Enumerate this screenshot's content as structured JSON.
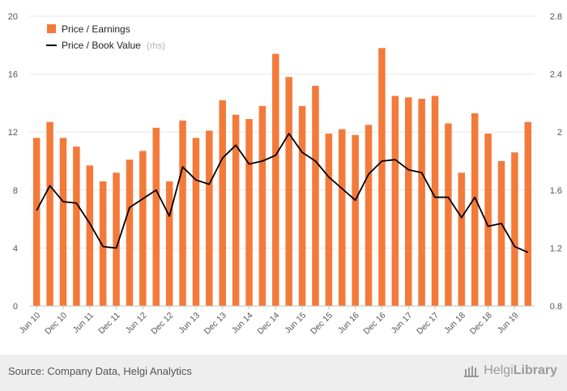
{
  "chart_data": {
    "type": "bar",
    "categories": [
      "Jun 10",
      "Sep 10",
      "Dec 10",
      "Mar 11",
      "Jun 11",
      "Sep 11",
      "Dec 11",
      "Mar 12",
      "Jun 12",
      "Sep 12",
      "Dec 12",
      "Mar 13",
      "Jun 13",
      "Sep 13",
      "Dec 13",
      "Mar 14",
      "Jun 14",
      "Sep 14",
      "Dec 14",
      "Mar 15",
      "Jun 15",
      "Sep 15",
      "Dec 15",
      "Mar 16",
      "Jun 16",
      "Sep 16",
      "Dec 16",
      "Mar 17",
      "Jun 17",
      "Sep 17",
      "Dec 17",
      "Mar 18",
      "Jun 18",
      "Sep 18",
      "Dec 18",
      "Mar 19",
      "Jun 19",
      "Sep 19"
    ],
    "x_tick_labels": [
      "Jun 10",
      "Dec 10",
      "Jun 11",
      "Dec 11",
      "Jun 12",
      "Dec 12",
      "Jun 13",
      "Dec 13",
      "Jun 14",
      "Dec 14",
      "Jun 15",
      "Dec 15",
      "Jun 16",
      "Dec 16",
      "Jun 17",
      "Dec 17",
      "Jun 18",
      "Dec 18",
      "Jun 19"
    ],
    "series": [
      {
        "name": "Price / Earnings",
        "type": "bar",
        "axis": "left",
        "color": "#f47a3a",
        "values": [
          11.6,
          12.7,
          11.6,
          11.0,
          9.7,
          8.6,
          9.2,
          10.1,
          10.7,
          12.3,
          8.6,
          12.8,
          11.6,
          12.1,
          14.2,
          13.2,
          12.9,
          13.8,
          17.4,
          15.8,
          13.8,
          15.2,
          11.9,
          12.2,
          11.8,
          12.5,
          17.8,
          14.5,
          14.4,
          14.3,
          14.5,
          12.6,
          9.2,
          13.3,
          11.9,
          10.0,
          10.6,
          12.7
        ]
      },
      {
        "name": "Price / Book Value",
        "name_suffix": "(rhs)",
        "type": "line",
        "axis": "right",
        "color": "#000000",
        "values": [
          1.46,
          1.63,
          1.52,
          1.51,
          1.37,
          1.21,
          1.2,
          1.48,
          1.54,
          1.6,
          1.42,
          1.76,
          1.67,
          1.64,
          1.82,
          1.91,
          1.78,
          1.8,
          1.84,
          1.99,
          1.86,
          1.8,
          1.69,
          1.61,
          1.53,
          1.71,
          1.8,
          1.81,
          1.74,
          1.72,
          1.55,
          1.55,
          1.41,
          1.55,
          1.35,
          1.37,
          1.21,
          1.17
        ]
      }
    ],
    "y_left": {
      "min": 0,
      "max": 20,
      "ticks": [
        "0",
        "4",
        "8",
        "12",
        "16",
        "20"
      ]
    },
    "y_right": {
      "min": 0.8,
      "max": 2.8,
      "ticks": [
        "0.8",
        "1.2",
        "1.6",
        "2",
        "2.4",
        "2.8"
      ]
    },
    "grid": true,
    "legend": "top-left"
  },
  "footer": {
    "source": "Source: Company Data, Helgi Analytics",
    "brand_regular": "Helgi",
    "brand_bold": "Library"
  }
}
